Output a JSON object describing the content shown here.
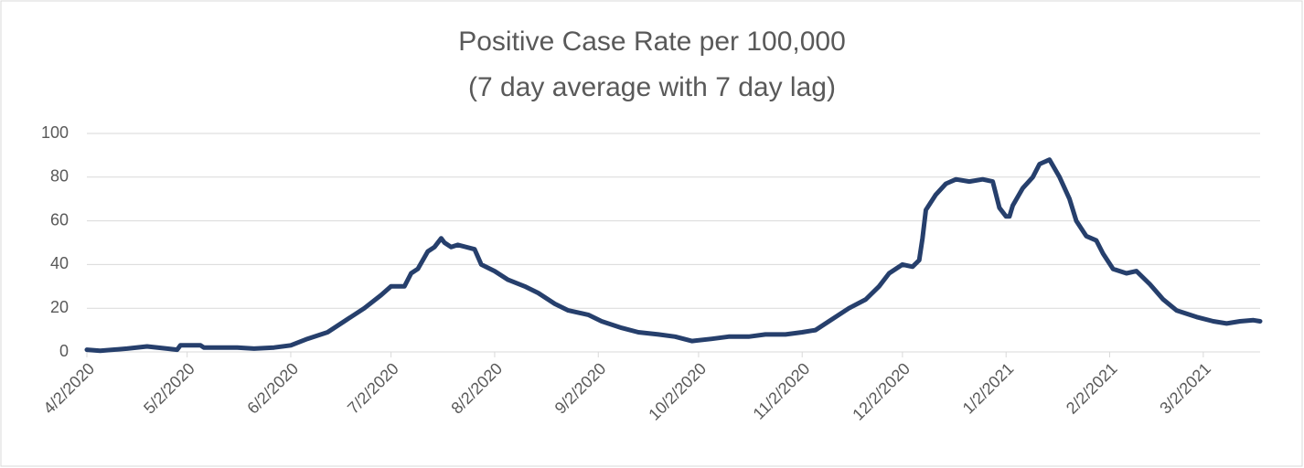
{
  "chart_data": {
    "type": "line",
    "title": "Positive Case Rate per 100,000",
    "subtitle": "(7 day average with 7 day lag)",
    "x": [
      "4/2/2020",
      "4/6/2020",
      "4/14/2020",
      "4/20/2020",
      "4/26/2020",
      "4/29/2020",
      "4/30/2020",
      "5/6/2020",
      "5/7/2020",
      "5/17/2020",
      "5/22/2020",
      "5/28/2020",
      "6/2/2020",
      "6/7/2020",
      "6/13/2020",
      "6/18/2020",
      "6/24/2020",
      "6/29/2020",
      "7/2/2020",
      "7/6/2020",
      "7/8/2020",
      "7/10/2020",
      "7/13/2020",
      "7/15/2020",
      "7/17/2020",
      "7/18/2020",
      "7/20/2020",
      "7/22/2020",
      "7/27/2020",
      "7/29/2020",
      "8/2/2020",
      "8/6/2020",
      "8/11/2020",
      "8/15/2020",
      "8/20/2020",
      "8/24/2020",
      "8/30/2020",
      "9/3/2020",
      "9/9/2020",
      "9/14/2020",
      "9/20/2020",
      "9/25/2020",
      "9/30/2020",
      "10/6/2020",
      "10/11/2020",
      "10/17/2020",
      "10/22/2020",
      "10/28/2020",
      "11/2/2020",
      "11/6/2020",
      "11/10/2020",
      "11/16/2020",
      "11/21/2020",
      "11/25/2020",
      "11/28/2020",
      "12/2/2020",
      "12/5/2020",
      "12/7/2020",
      "12/8/2020",
      "12/9/2020",
      "12/12/2020",
      "12/15/2020",
      "12/18/2020",
      "12/22/2020",
      "12/26/2020",
      "12/29/2020",
      "12/31/2020",
      "1/2/2021",
      "1/3/2021",
      "1/4/2021",
      "1/7/2021",
      "1/10/2021",
      "1/12/2021",
      "1/15/2021",
      "1/18/2021",
      "1/21/2021",
      "1/23/2021",
      "1/26/2021",
      "1/29/2021",
      "1/31/2021",
      "2/3/2021",
      "2/7/2021",
      "2/10/2021",
      "2/14/2021",
      "2/18/2021",
      "2/22/2021",
      "2/28/2021",
      "3/5/2021",
      "3/9/2021",
      "3/13/2021",
      "3/17/2021",
      "3/19/2021"
    ],
    "series": [
      {
        "name": "Positive Case Rate",
        "color": "#263f6c",
        "values": [
          1,
          0.5,
          1.5,
          2.5,
          1.5,
          1,
          3,
          3,
          2,
          2,
          1.5,
          2,
          3,
          6,
          9,
          14,
          20,
          26,
          30,
          30,
          36,
          38,
          46,
          48,
          52,
          50,
          48,
          49,
          47,
          40,
          37,
          33,
          30,
          27,
          22,
          19,
          17,
          14,
          11,
          9,
          8,
          7,
          5,
          6,
          7,
          7,
          8,
          8,
          9,
          10,
          14,
          20,
          24,
          30,
          36,
          40,
          39,
          42,
          52,
          65,
          72,
          77,
          79,
          78,
          79,
          78,
          66,
          62,
          62,
          67,
          75,
          80,
          86,
          88,
          80,
          70,
          60,
          53,
          51,
          45,
          38,
          36,
          37,
          31,
          24,
          19,
          16,
          14,
          13,
          14,
          14.5,
          14
        ]
      }
    ],
    "xlim": [
      "4/2/2020",
      "3/19/2021"
    ],
    "xticks": [
      "4/2/2020",
      "5/2/2020",
      "6/2/2020",
      "7/2/2020",
      "8/2/2020",
      "9/2/2020",
      "10/2/2020",
      "11/2/2020",
      "12/2/2020",
      "1/2/2021",
      "2/2/2021",
      "3/2/2021"
    ],
    "ylim": [
      0,
      100
    ],
    "yticks": [
      0,
      20,
      40,
      60,
      80,
      100
    ],
    "grid": true
  }
}
